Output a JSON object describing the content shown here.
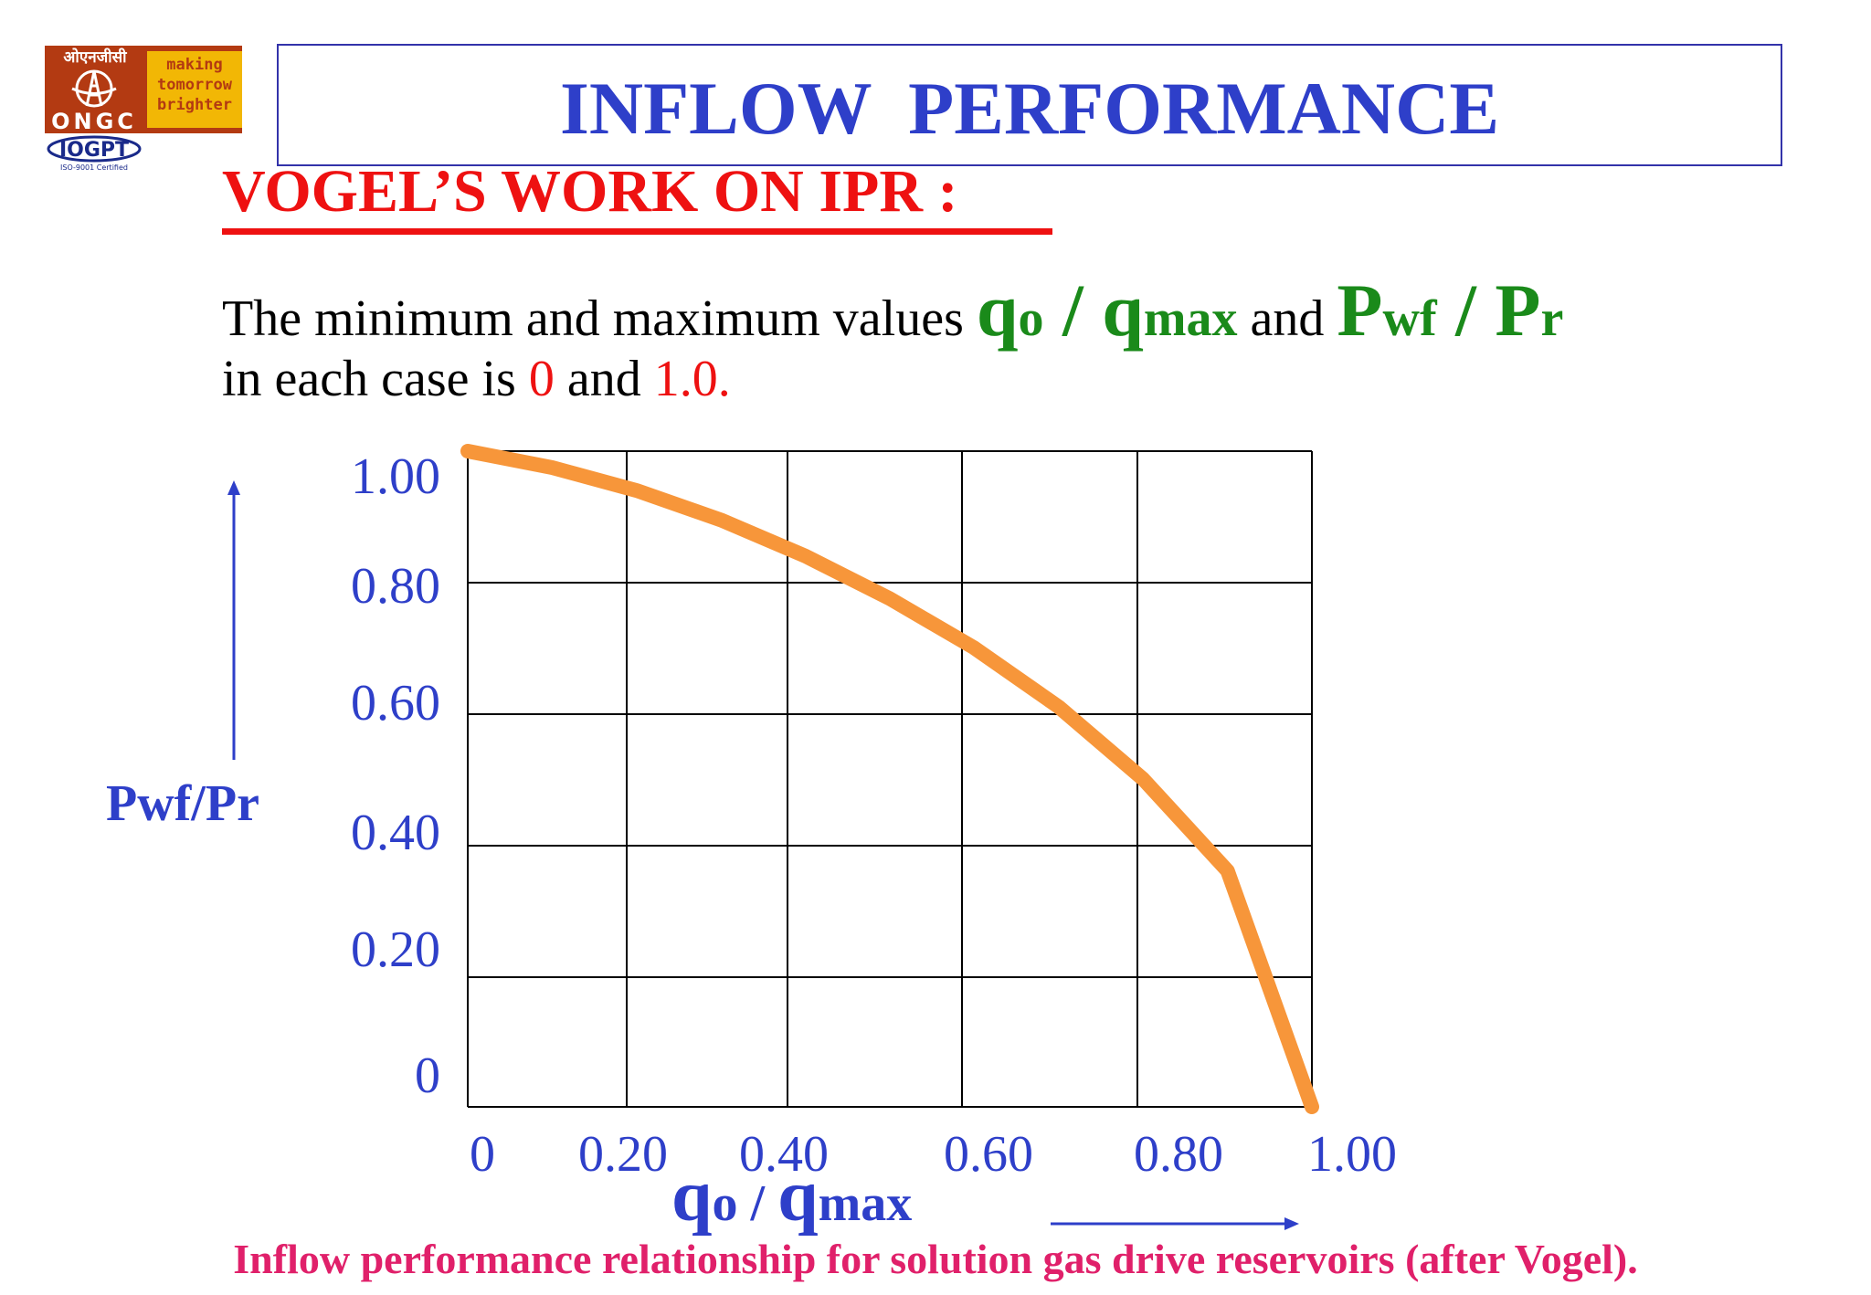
{
  "logo": {
    "hindi_text": "ओएनजीसी",
    "company": "ONGC",
    "slogan": [
      "making",
      "tomorrow",
      "brighter"
    ],
    "iogpt": "IOGPT",
    "cert": "ISO-9001 Certified",
    "colors": {
      "primary": "#b33a12",
      "accent": "#f2b705"
    }
  },
  "header": {
    "title": "INFLOW  PERFORMANCE",
    "subtitle": "VOGEL’S WORK ON IPR :"
  },
  "description": {
    "line1_prefix": "The minimum and maximum values",
    "q_big": "q",
    "q_sub": "o",
    "slash": " / ",
    "q2_big": "q",
    "q2_sub": "max",
    "and": " and ",
    "p_big": "P",
    "p_sub": "wf",
    "slash2": " / ",
    "p2_big": "P",
    "p2_sub": "r",
    "line2_prefix": "in each case is ",
    "min_value": "0",
    "line2_and": " and ",
    "max_value": "1.0",
    "line2_end": "."
  },
  "chart_data": {
    "type": "line",
    "ylabel": "Pwf/Pr",
    "xlabel_big1": "q",
    "xlabel_sub1": "o",
    "xlabel_slash": " / ",
    "xlabel_big2": "q",
    "xlabel_sub2": "max",
    "xlim": [
      0,
      1.0
    ],
    "ylim": [
      0,
      1.0
    ],
    "x_ticks": [
      "0",
      "0.20",
      "0.40",
      "0.60",
      "0.80",
      "1.00"
    ],
    "y_ticks": [
      "1.00",
      "0.80",
      "0.60",
      "0.40",
      "0.20",
      "0"
    ],
    "grid": true,
    "series": [
      {
        "x": [
          0,
          0.1,
          0.2,
          0.3,
          0.4,
          0.5,
          0.6,
          0.7,
          0.8,
          0.9,
          1.0
        ],
        "y": [
          1.0,
          0.975,
          0.94,
          0.895,
          0.84,
          0.775,
          0.7,
          0.61,
          0.5,
          0.36,
          0.0
        ],
        "color": "#f7963a"
      }
    ],
    "caption": "Inflow performance relationship for solution gas drive reservoirs (after Vogel).",
    "colors": {
      "axis_text": "#2e3fc9",
      "curve": "#f7963a",
      "arrow": "#2e3fc9",
      "caption": "#e0206a"
    }
  }
}
